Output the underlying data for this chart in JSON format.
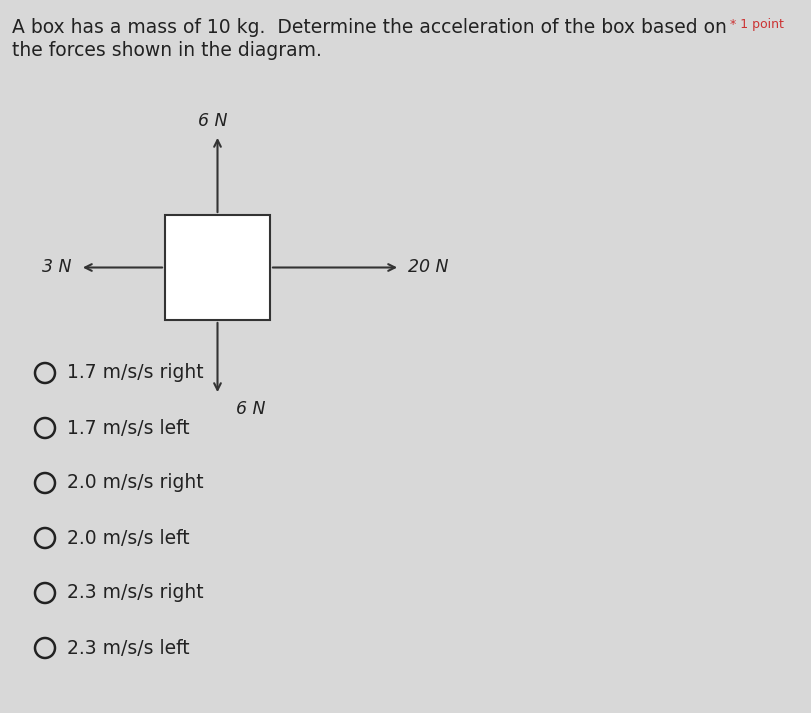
{
  "background_color": "#d8d8d8",
  "title_line1": "A box has a mass of 10 kg.  Determine the acceleration of the box based on",
  "title_asterisk": "* 1 point",
  "title_line2": "the forces shown in the diagram.",
  "force_up_label": "6 N",
  "force_down_label": "6 N",
  "force_left_label": "3 N",
  "force_right_label": "20 N",
  "options": [
    "1.7 m/s/s right",
    "1.7 m/s/s left",
    "2.0 m/s/s right",
    "2.0 m/s/s left",
    "2.3 m/s/s right",
    "2.3 m/s/s left"
  ],
  "text_color": "#222222",
  "box_edge_color": "#333333",
  "arrow_color": "#333333",
  "font_size_options": 13.5,
  "font_size_title": 13.5,
  "font_size_forces": 12.5,
  "asterisk_color": "#cc3333",
  "asterisk_fontsize": 9
}
